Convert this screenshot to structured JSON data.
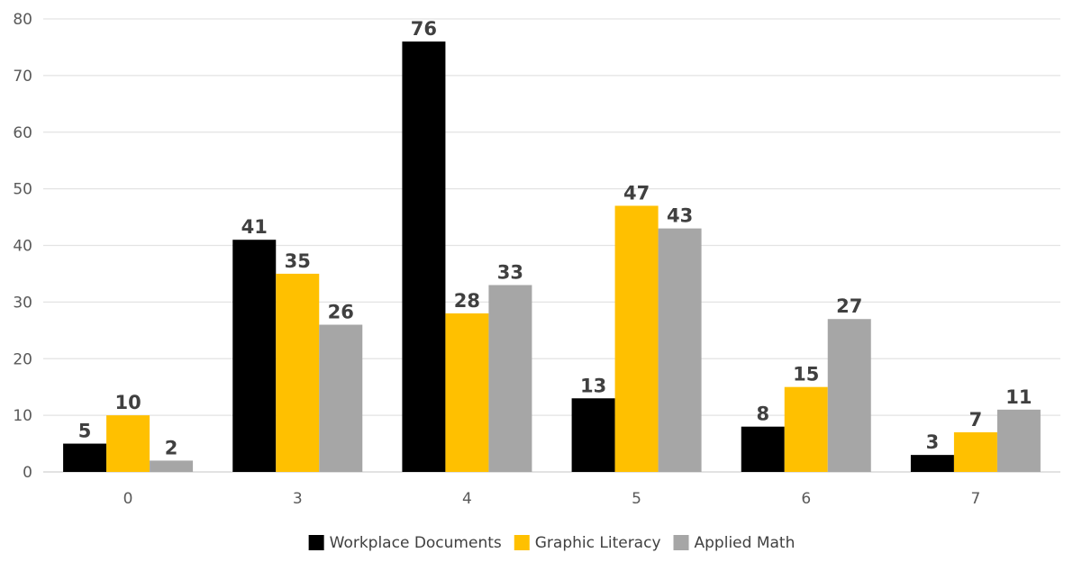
{
  "chart_data": {
    "type": "bar",
    "title": "",
    "xlabel": "",
    "ylabel": "",
    "categories": [
      "0",
      "3",
      "4",
      "5",
      "6",
      "7"
    ],
    "ylim": [
      0,
      80
    ],
    "yticks": [
      0,
      10,
      20,
      30,
      40,
      50,
      60,
      70,
      80
    ],
    "grid": true,
    "legend_position": "bottom",
    "series": [
      {
        "name": "Workplace Documents",
        "color": "#000000",
        "values": [
          5,
          41,
          76,
          13,
          8,
          3
        ]
      },
      {
        "name": "Graphic Literacy",
        "color": "#FFC000",
        "values": [
          10,
          35,
          28,
          47,
          15,
          7
        ]
      },
      {
        "name": "Applied Math",
        "color": "#A6A6A6",
        "values": [
          2,
          26,
          33,
          43,
          27,
          11
        ]
      }
    ],
    "data_labels": true
  }
}
